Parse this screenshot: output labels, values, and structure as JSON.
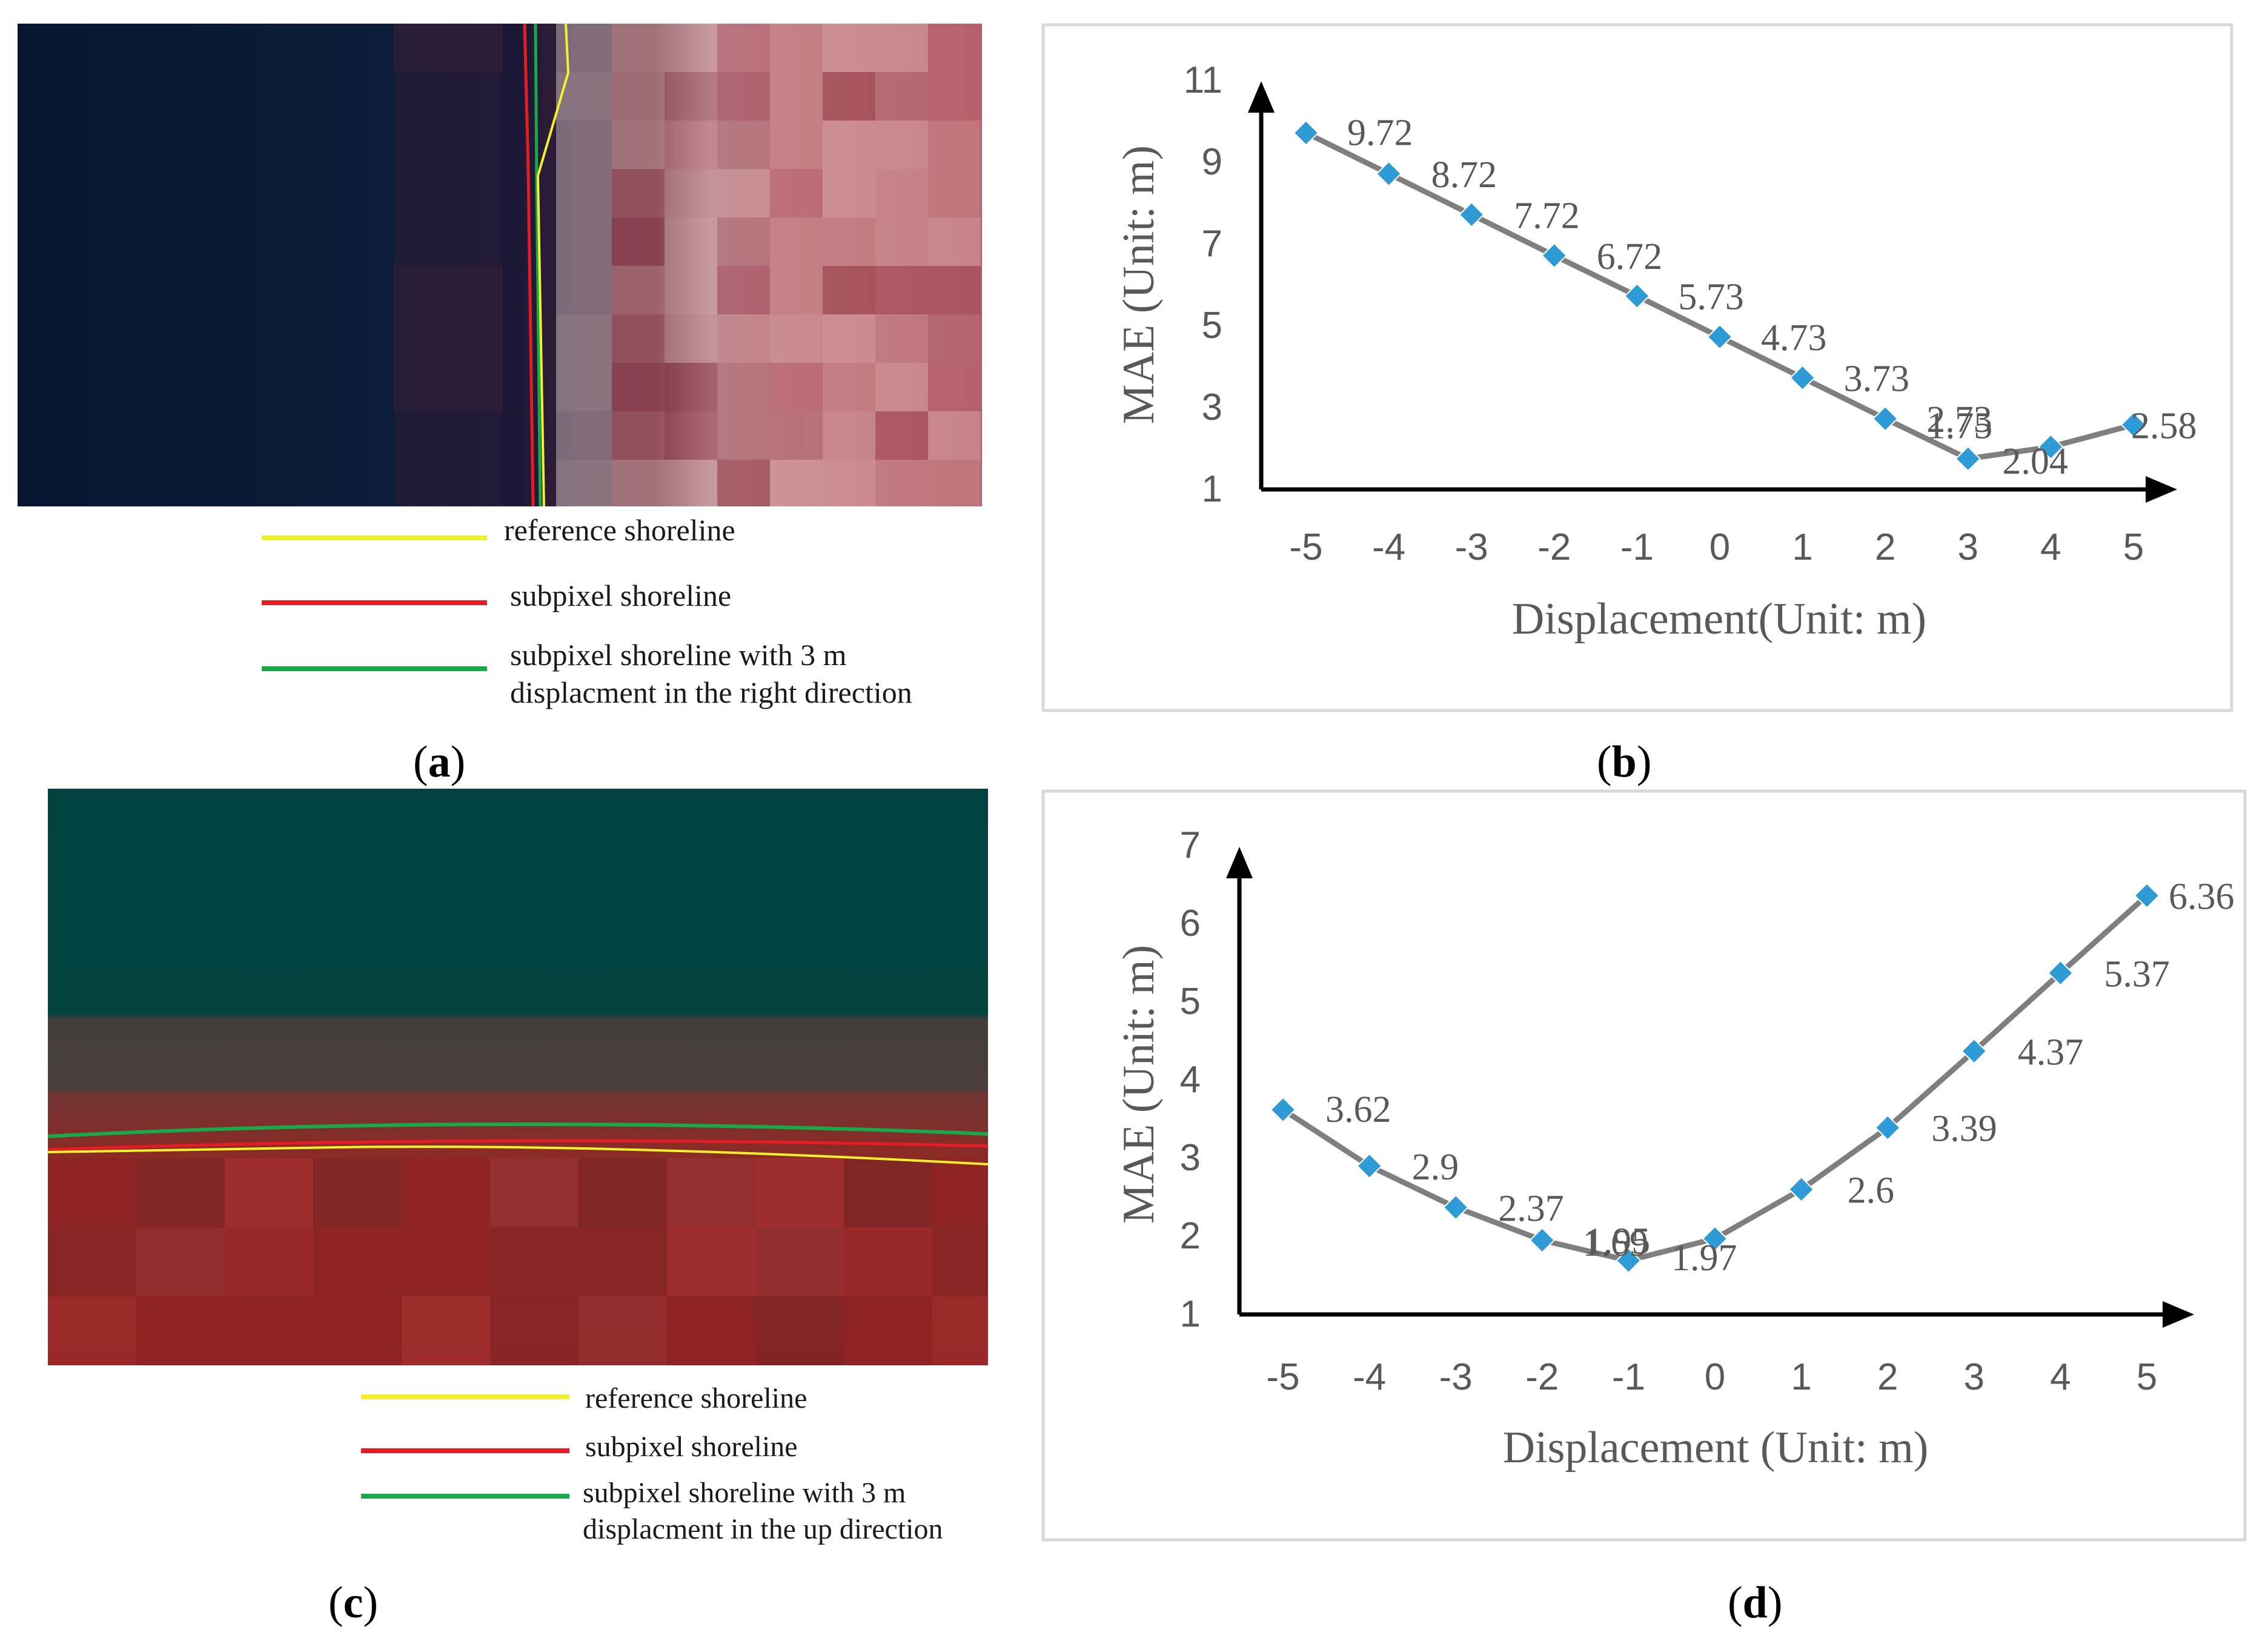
{
  "panels": {
    "a": {
      "caption": "a",
      "legend": [
        {
          "label_lines": [
            "reference shoreline"
          ],
          "color": "#f2ef2c"
        },
        {
          "label_lines": [
            "subpixel shoreline"
          ],
          "color": "#e51c23"
        },
        {
          "label_lines": [
            "subpixel shoreline with 3 m",
            "displacment in the right direction"
          ],
          "color": "#19a84a"
        }
      ]
    },
    "b": {
      "caption": "b"
    },
    "c": {
      "caption": "c",
      "legend": [
        {
          "label_lines": [
            "reference shoreline"
          ],
          "color": "#f2ef2c"
        },
        {
          "label_lines": [
            "subpixel shoreline"
          ],
          "color": "#e51c23"
        },
        {
          "label_lines": [
            "subpixel shoreline with 3 m",
            "displacment in the up direction"
          ],
          "color": "#19a84a"
        }
      ]
    },
    "d": {
      "caption": "d"
    }
  },
  "colors": {
    "marker": "#2e9bd6",
    "line": "#7f7f7f",
    "axis": "#000000",
    "text": "#595959",
    "frame": "#d9d9d9"
  },
  "chart_data": [
    {
      "id": "b",
      "type": "line",
      "x": [
        -5,
        -4,
        -3,
        -2,
        -1,
        0,
        1,
        2,
        3,
        4,
        5
      ],
      "values": [
        9.72,
        8.72,
        7.72,
        6.72,
        5.73,
        4.73,
        3.73,
        2.73,
        1.75,
        2.04,
        2.58
      ],
      "data_labels": [
        "9.72",
        "8.72",
        "7.72",
        "6.72",
        "5.73",
        "4.73",
        "3.73",
        "2.73",
        "1.75",
        "2.04",
        "2.58"
      ],
      "xticks": [
        "-5",
        "-4",
        "-3",
        "-2",
        "-1",
        "0",
        "1",
        "2",
        "3",
        "4",
        "5"
      ],
      "yticks": [
        "1",
        "3",
        "5",
        "7",
        "9",
        "11"
      ],
      "ylim": [
        1,
        11
      ],
      "xlabel": "Displacement(Unit: m)",
      "ylabel": "MAE (Unit: m)",
      "marker": "diamond"
    },
    {
      "id": "d",
      "type": "line",
      "x": [
        -5,
        -4,
        -3,
        -2,
        -1,
        0,
        1,
        2,
        3,
        4,
        5
      ],
      "values": [
        3.62,
        2.9,
        2.37,
        1.95,
        1.69,
        1.97,
        2.6,
        3.39,
        4.37,
        5.37,
        6.36
      ],
      "data_labels": [
        "3.62",
        "2.9",
        "2.37",
        "1.95",
        "1.69",
        "1.97",
        "2.6",
        "3.39",
        "4.37",
        "5.37",
        "6.36"
      ],
      "xticks": [
        "-5",
        "-4",
        "-3",
        "-2",
        "-1",
        "0",
        "1",
        "2",
        "3",
        "4",
        "5"
      ],
      "yticks": [
        "1",
        "2",
        "3",
        "4",
        "5",
        "6",
        "7"
      ],
      "ylim": [
        1,
        7
      ],
      "xlabel": "Displacement (Unit: m)",
      "ylabel": "MAE (Unit: m)",
      "marker": "diamond"
    }
  ]
}
